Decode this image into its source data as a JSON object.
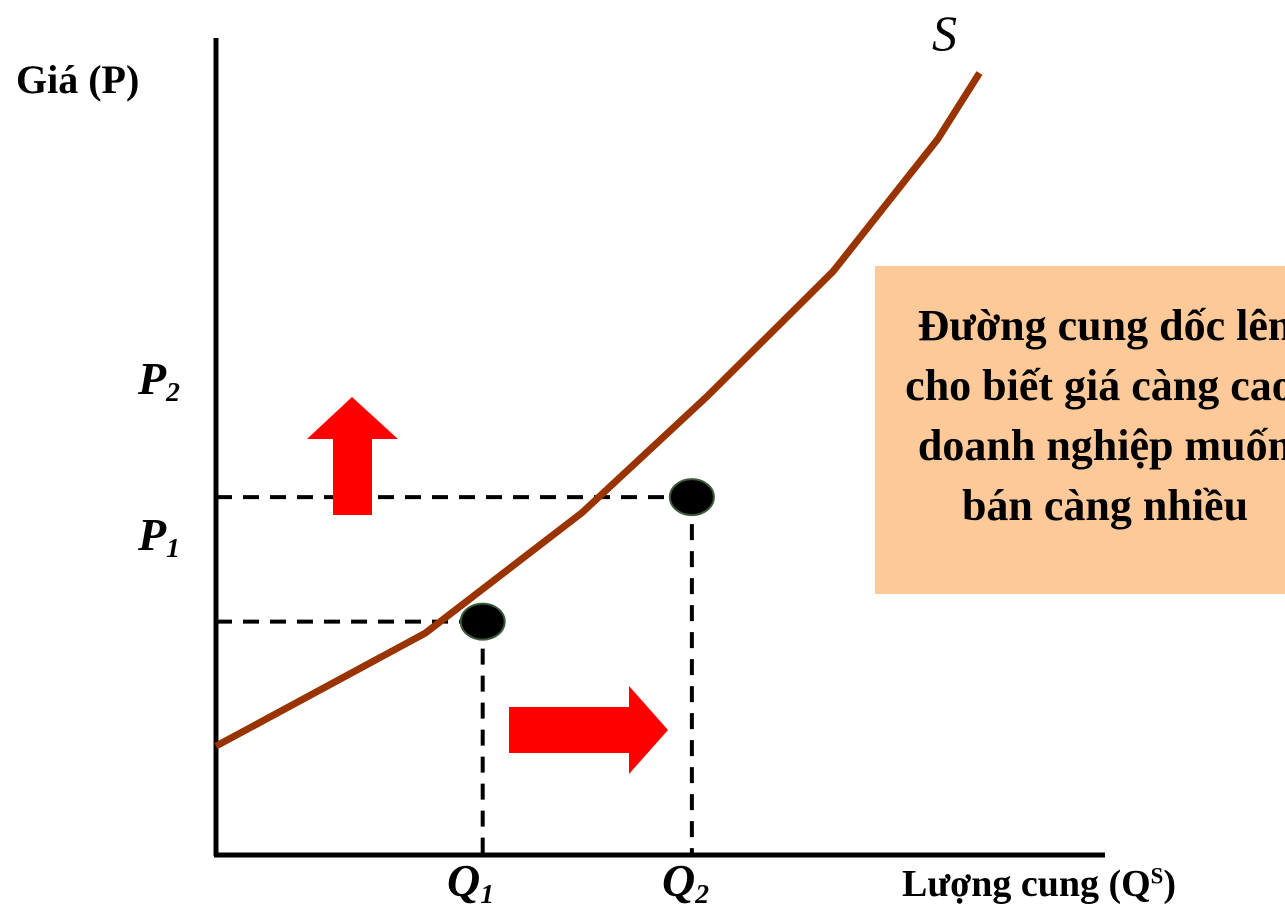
{
  "chart_data": {
    "type": "line",
    "ylabel": "Giá (P)",
    "xlabel_main": "Lượng cung (Q",
    "xlabel_sup": "S",
    "xlabel_end": ")",
    "series": [
      {
        "name": "S",
        "points": [
          [
            0,
            1.4
          ],
          [
            2,
            2.85
          ],
          [
            3.5,
            4.4
          ],
          [
            4.7,
            5.9
          ],
          [
            5.9,
            7.5
          ],
          [
            6.9,
            9.2
          ],
          [
            7.3,
            10.05
          ]
        ]
      }
    ],
    "xlim": [
      0,
      8.5
    ],
    "ylim": [
      0,
      10.5
    ],
    "ticks": {
      "p1": {
        "letter": "P",
        "sub": "1",
        "y": 3.0
      },
      "p2": {
        "letter": "P",
        "sub": "2",
        "y": 4.6
      },
      "q1": {
        "letter": "Q",
        "sub": "1",
        "x": 2.55
      },
      "q2": {
        "letter": "Q",
        "sub": "2",
        "x": 4.55
      }
    },
    "points": [
      {
        "x": 2.55,
        "y": 3.0
      },
      {
        "x": 4.55,
        "y": 4.6
      }
    ],
    "grid": false,
    "legend": "none"
  },
  "annotation": {
    "lines": [
      "Đường cung dốc lên",
      "cho biết giá càng cao,",
      "doanh nghiệp muốn",
      "bán càng nhiều"
    ],
    "background": "#fdc998"
  },
  "colors": {
    "curve": "#993300",
    "arrow": "#ff0000",
    "axis": "#000000",
    "point": "#000000"
  }
}
